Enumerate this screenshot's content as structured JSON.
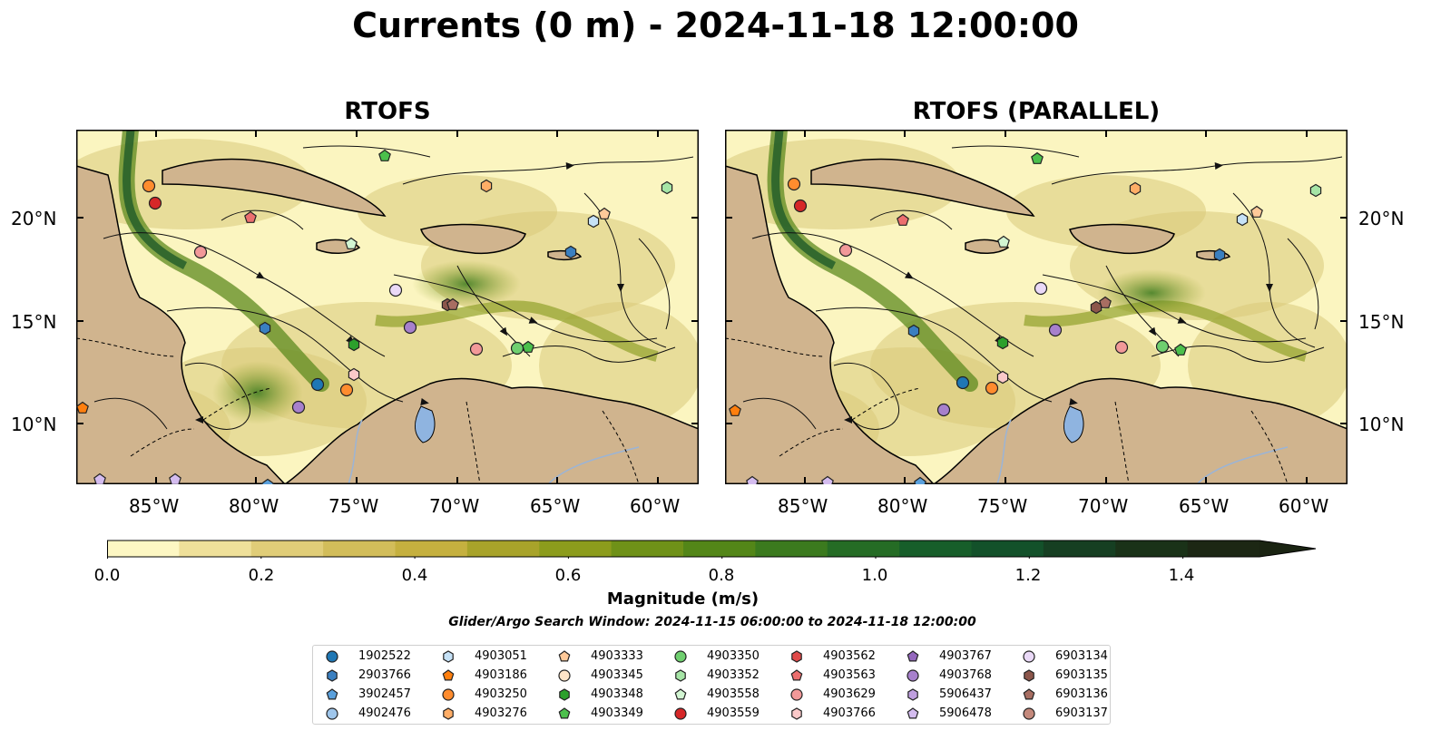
{
  "title": "Currents (0 m) - 2024-11-18 12:00:00",
  "panels": [
    {
      "title": "RTOFS"
    },
    {
      "title": "RTOFS (PARALLEL)"
    }
  ],
  "map": {
    "lon_ticks": [
      "85°W",
      "80°W",
      "75°W",
      "70°W",
      "65°W",
      "60°W"
    ],
    "lat_ticks": [
      "20°N",
      "15°N",
      "10°N"
    ],
    "colors": {
      "land": "#d0b48e",
      "water_low": "#fbf5c0",
      "water_high": "#1f3a1a",
      "lake": "#8fb4e0"
    }
  },
  "colorbar": {
    "label": "Magnitude (m/s)",
    "ticks": [
      "0.0",
      "0.2",
      "0.4",
      "0.6",
      "0.8",
      "1.0",
      "1.2",
      "1.4"
    ],
    "colors": [
      "#fdf7c3",
      "#efe09a",
      "#e0cd78",
      "#d2bd5a",
      "#c5b03f",
      "#a8a32a",
      "#8c9c1c",
      "#6f9118",
      "#538618",
      "#3b7a1e",
      "#256c25",
      "#175e2a",
      "#13512a",
      "#163f22",
      "#1a3218",
      "#1c2714"
    ]
  },
  "search_window": "Glider/Argo Search Window: 2024-11-15 06:00:00 to 2024-11-18 12:00:00",
  "legend": [
    {
      "label": "1902522",
      "color": "#1f77b4",
      "shape": "circle"
    },
    {
      "label": "2903766",
      "color": "#3a7fc0",
      "shape": "hexagon"
    },
    {
      "label": "3902457",
      "color": "#5aa0dc",
      "shape": "pentagon"
    },
    {
      "label": "4902476",
      "color": "#9fc6eb",
      "shape": "circle"
    },
    {
      "label": "4903051",
      "color": "#c6e2f7",
      "shape": "hexagon"
    },
    {
      "label": "4903186",
      "color": "#ff7f0e",
      "shape": "pentagon"
    },
    {
      "label": "4903250",
      "color": "#ff8c2e",
      "shape": "circle"
    },
    {
      "label": "4903276",
      "color": "#ffad66",
      "shape": "hexagon"
    },
    {
      "label": "4903333",
      "color": "#ffc999",
      "shape": "pentagon"
    },
    {
      "label": "4903345",
      "color": "#ffe4c8",
      "shape": "circle"
    },
    {
      "label": "4903348",
      "color": "#2ca02c",
      "shape": "hexagon"
    },
    {
      "label": "4903349",
      "color": "#4cc04c",
      "shape": "pentagon"
    },
    {
      "label": "4903350",
      "color": "#6fcf6f",
      "shape": "circle"
    },
    {
      "label": "4903352",
      "color": "#a6e5a6",
      "shape": "hexagon"
    },
    {
      "label": "4903558",
      "color": "#d2f5d2",
      "shape": "pentagon"
    },
    {
      "label": "4903559",
      "color": "#d62728",
      "shape": "circle"
    },
    {
      "label": "4903562",
      "color": "#e04a4a",
      "shape": "hexagon"
    },
    {
      "label": "4903563",
      "color": "#ec6f6f",
      "shape": "pentagon"
    },
    {
      "label": "4903629",
      "color": "#f29999",
      "shape": "circle"
    },
    {
      "label": "4903766",
      "color": "#fbc9c9",
      "shape": "hexagon"
    },
    {
      "label": "4903767",
      "color": "#9467bd",
      "shape": "pentagon"
    },
    {
      "label": "4903768",
      "color": "#a780cc",
      "shape": "circle"
    },
    {
      "label": "5906437",
      "color": "#bf9fdf",
      "shape": "hexagon"
    },
    {
      "label": "5906478",
      "color": "#d4bcef",
      "shape": "pentagon"
    },
    {
      "label": "6903134",
      "color": "#ead9f7",
      "shape": "circle"
    },
    {
      "label": "6903135",
      "color": "#8c564b",
      "shape": "hexagon"
    },
    {
      "label": "6903136",
      "color": "#a86e62",
      "shape": "pentagon"
    },
    {
      "label": "6903137",
      "color": "#c4897c",
      "shape": "circle"
    }
  ]
}
